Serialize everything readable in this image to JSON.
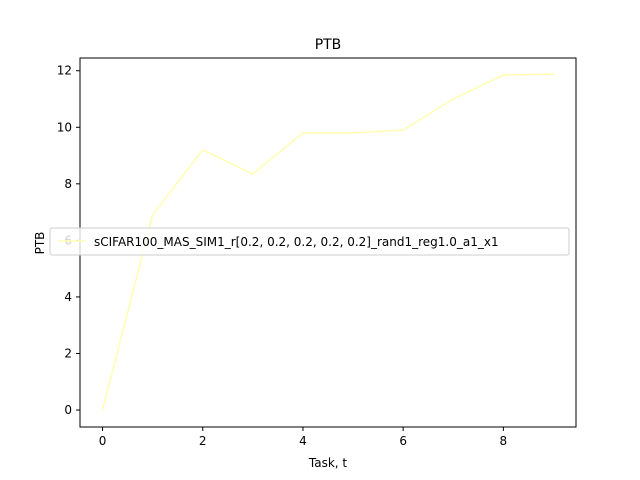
{
  "chart_data": {
    "type": "line",
    "title": "PTB",
    "xlabel": "Task, t",
    "ylabel": "PTB",
    "xlim": [
      -0.45,
      9.45
    ],
    "ylim": [
      -0.6,
      12.45
    ],
    "xticks": [
      0,
      2,
      4,
      6,
      8
    ],
    "yticks": [
      0,
      2,
      4,
      6,
      8,
      10,
      12
    ],
    "grid": false,
    "legend_position": "center-right",
    "series": [
      {
        "name": "sCIFAR100_MAS_SIM1_r[0.2, 0.2, 0.2, 0.2, 0.2]_rand1_reg1.0_a1_x1",
        "color": "#ffffb3",
        "x": [
          0,
          1,
          2,
          3,
          4,
          5,
          6,
          7,
          8,
          9
        ],
        "y": [
          0.0,
          6.9,
          9.2,
          8.35,
          9.8,
          9.8,
          9.9,
          11.0,
          11.85,
          11.88
        ]
      }
    ]
  }
}
